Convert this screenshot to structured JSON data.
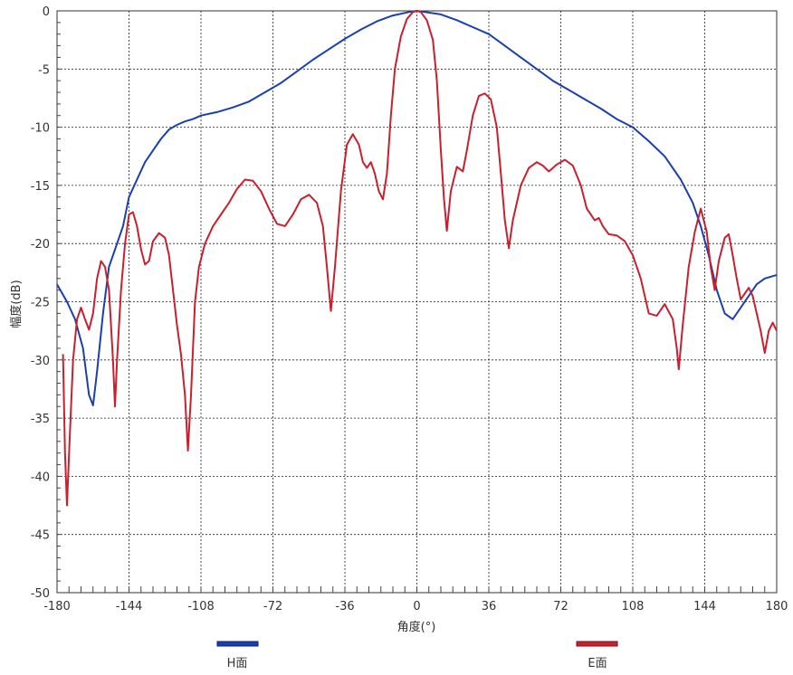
{
  "chart_data": {
    "type": "line",
    "xlabel": "角度(°)",
    "ylabel": "幅度(dB)",
    "xlim": [
      -180,
      180
    ],
    "ylim": [
      -50,
      0
    ],
    "xticks": [
      "-180",
      "-144",
      "-108",
      "-72",
      "-36",
      "0",
      "36",
      "72",
      "108",
      "144",
      "180"
    ],
    "yticks": [
      "0",
      "-5",
      "-10",
      "-15",
      "-20",
      "-25",
      "-30",
      "-35",
      "-40",
      "-45",
      "-50"
    ],
    "grid": true,
    "legend_position": "bottom",
    "series": [
      {
        "name": "H面",
        "color": "#1a3fb0",
        "points": [
          [
            -180,
            -23.5
          ],
          [
            -175,
            -25
          ],
          [
            -171,
            -26.5
          ],
          [
            -167,
            -29
          ],
          [
            -164,
            -33
          ],
          [
            -162,
            -33.9
          ],
          [
            -160,
            -31
          ],
          [
            -157,
            -26
          ],
          [
            -154,
            -22
          ],
          [
            -150,
            -20
          ],
          [
            -147,
            -18.5
          ],
          [
            -144,
            -16
          ],
          [
            -140,
            -14.5
          ],
          [
            -136,
            -13
          ],
          [
            -132,
            -12
          ],
          [
            -128,
            -11
          ],
          [
            -124,
            -10.2
          ],
          [
            -120,
            -9.8
          ],
          [
            -116,
            -9.5
          ],
          [
            -112,
            -9.3
          ],
          [
            -108,
            -9.0
          ],
          [
            -100,
            -8.7
          ],
          [
            -92,
            -8.3
          ],
          [
            -84,
            -7.8
          ],
          [
            -76,
            -7.0
          ],
          [
            -68,
            -6.2
          ],
          [
            -60,
            -5.2
          ],
          [
            -52,
            -4.2
          ],
          [
            -44,
            -3.3
          ],
          [
            -36,
            -2.4
          ],
          [
            -28,
            -1.6
          ],
          [
            -20,
            -0.9
          ],
          [
            -12,
            -0.4
          ],
          [
            -4,
            -0.1
          ],
          [
            0,
            0
          ],
          [
            4,
            -0.1
          ],
          [
            12,
            -0.3
          ],
          [
            20,
            -0.8
          ],
          [
            28,
            -1.4
          ],
          [
            36,
            -2.0
          ],
          [
            44,
            -3.0
          ],
          [
            52,
            -4.0
          ],
          [
            60,
            -5.0
          ],
          [
            68,
            -6.0
          ],
          [
            76,
            -6.8
          ],
          [
            84,
            -7.6
          ],
          [
            92,
            -8.4
          ],
          [
            100,
            -9.3
          ],
          [
            108,
            -10.0
          ],
          [
            116,
            -11.2
          ],
          [
            124,
            -12.5
          ],
          [
            132,
            -14.5
          ],
          [
            138,
            -16.5
          ],
          [
            142,
            -18.5
          ],
          [
            146,
            -21
          ],
          [
            150,
            -24
          ],
          [
            154,
            -26
          ],
          [
            158,
            -26.5
          ],
          [
            162,
            -25.5
          ],
          [
            166,
            -24.5
          ],
          [
            170,
            -23.5
          ],
          [
            174,
            -23.0
          ],
          [
            178,
            -22.8
          ],
          [
            180,
            -22.7
          ]
        ]
      },
      {
        "name": "E面",
        "color": "#c8202e",
        "points": [
          [
            -177,
            -29.5
          ],
          [
            -176,
            -38
          ],
          [
            -175,
            -42.5
          ],
          [
            -174,
            -38
          ],
          [
            -172,
            -30
          ],
          [
            -170,
            -26.5
          ],
          [
            -168,
            -25.5
          ],
          [
            -166,
            -26.5
          ],
          [
            -164,
            -27.4
          ],
          [
            -162,
            -26
          ],
          [
            -160,
            -23
          ],
          [
            -158,
            -21.5
          ],
          [
            -156,
            -22
          ],
          [
            -154,
            -24
          ],
          [
            -152,
            -30
          ],
          [
            -151,
            -34
          ],
          [
            -150,
            -30
          ],
          [
            -148,
            -24
          ],
          [
            -146,
            -20
          ],
          [
            -144,
            -17.5
          ],
          [
            -142,
            -17.3
          ],
          [
            -140,
            -18.5
          ],
          [
            -138,
            -20.5
          ],
          [
            -136,
            -21.8
          ],
          [
            -134,
            -21.5
          ],
          [
            -132,
            -19.8
          ],
          [
            -129,
            -19.1
          ],
          [
            -126,
            -19.5
          ],
          [
            -124,
            -21
          ],
          [
            -122,
            -24
          ],
          [
            -120,
            -27
          ],
          [
            -118,
            -29.5
          ],
          [
            -116,
            -33
          ],
          [
            -114.5,
            -37.8
          ],
          [
            -113,
            -33
          ],
          [
            -111,
            -25
          ],
          [
            -109,
            -22
          ],
          [
            -106,
            -20
          ],
          [
            -102,
            -18.5
          ],
          [
            -98,
            -17.5
          ],
          [
            -94,
            -16.5
          ],
          [
            -90,
            -15.3
          ],
          [
            -86,
            -14.5
          ],
          [
            -82,
            -14.6
          ],
          [
            -78,
            -15.5
          ],
          [
            -74,
            -17
          ],
          [
            -70,
            -18.3
          ],
          [
            -66,
            -18.5
          ],
          [
            -62,
            -17.5
          ],
          [
            -58,
            -16.2
          ],
          [
            -54,
            -15.8
          ],
          [
            -50,
            -16.5
          ],
          [
            -47,
            -18.5
          ],
          [
            -45,
            -22
          ],
          [
            -43,
            -25.8
          ],
          [
            -41,
            -22
          ],
          [
            -38,
            -15.5
          ],
          [
            -35,
            -11.5
          ],
          [
            -32,
            -10.6
          ],
          [
            -29,
            -11.5
          ],
          [
            -27,
            -13
          ],
          [
            -25,
            -13.5
          ],
          [
            -23,
            -13
          ],
          [
            -21,
            -14
          ],
          [
            -19,
            -15.5
          ],
          [
            -17,
            -16.2
          ],
          [
            -15,
            -14
          ],
          [
            -13,
            -9
          ],
          [
            -11,
            -5
          ],
          [
            -8,
            -2.2
          ],
          [
            -5,
            -0.7
          ],
          [
            -2,
            -0.1
          ],
          [
            0,
            0
          ],
          [
            2,
            -0.1
          ],
          [
            5,
            -0.8
          ],
          [
            8,
            -2.5
          ],
          [
            10,
            -6
          ],
          [
            12,
            -12
          ],
          [
            13.5,
            -16
          ],
          [
            15,
            -18.9
          ],
          [
            17,
            -15.5
          ],
          [
            20,
            -13.4
          ],
          [
            23,
            -13.8
          ],
          [
            25,
            -12
          ],
          [
            28,
            -9
          ],
          [
            31,
            -7.3
          ],
          [
            34,
            -7.1
          ],
          [
            37,
            -7.6
          ],
          [
            40,
            -10
          ],
          [
            42,
            -14
          ],
          [
            44,
            -18
          ],
          [
            46,
            -20.4
          ],
          [
            48,
            -18
          ],
          [
            52,
            -15
          ],
          [
            56,
            -13.5
          ],
          [
            60,
            -13
          ],
          [
            63,
            -13.3
          ],
          [
            66,
            -13.8
          ],
          [
            70,
            -13.2
          ],
          [
            74,
            -12.8
          ],
          [
            78,
            -13.3
          ],
          [
            82,
            -15
          ],
          [
            85,
            -17
          ],
          [
            87,
            -17.5
          ],
          [
            89,
            -18
          ],
          [
            91,
            -17.8
          ],
          [
            93,
            -18.5
          ],
          [
            96,
            -19.2
          ],
          [
            100,
            -19.3
          ],
          [
            104,
            -19.8
          ],
          [
            108,
            -21
          ],
          [
            112,
            -23
          ],
          [
            116,
            -26
          ],
          [
            120,
            -26.2
          ],
          [
            124,
            -25.2
          ],
          [
            128,
            -26.5
          ],
          [
            130,
            -29
          ],
          [
            131,
            -30.8
          ],
          [
            133,
            -27
          ],
          [
            136,
            -22
          ],
          [
            139,
            -19
          ],
          [
            142,
            -17
          ],
          [
            145,
            -19
          ],
          [
            147,
            -22
          ],
          [
            149,
            -24
          ],
          [
            151,
            -21.5
          ],
          [
            154,
            -19.5
          ],
          [
            156,
            -19.2
          ],
          [
            158,
            -21
          ],
          [
            160,
            -23
          ],
          [
            162,
            -24.8
          ],
          [
            164,
            -24.3
          ],
          [
            166,
            -23.8
          ],
          [
            168,
            -24.5
          ],
          [
            170,
            -26
          ],
          [
            172,
            -27.5
          ],
          [
            174,
            -29.4
          ],
          [
            176,
            -27.5
          ],
          [
            178,
            -26.8
          ],
          [
            180,
            -27.5
          ]
        ]
      }
    ]
  }
}
